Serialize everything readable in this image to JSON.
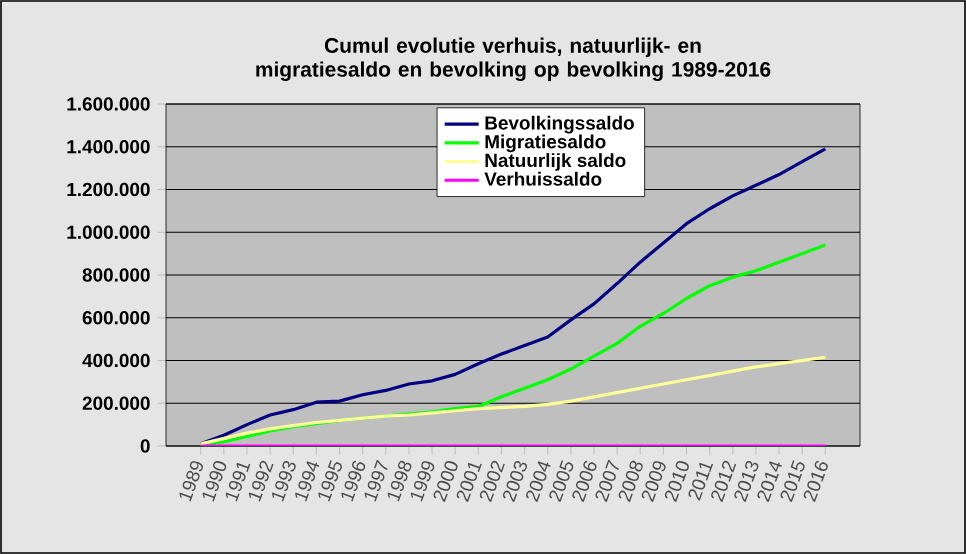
{
  "chart_data": {
    "type": "line",
    "title": "Cumul evolutie verhuis, natuurlijk- en migratiesaldo en bevolking op bevolking 1989-2016",
    "categories": [
      "1989",
      "1990",
      "1991",
      "1992",
      "1993",
      "1994",
      "1995",
      "1996",
      "1997",
      "1998",
      "1999",
      "2000",
      "2001",
      "2002",
      "2003",
      "2004",
      "2005",
      "2006",
      "2007",
      "2008",
      "2009",
      "2010",
      "2011",
      "2012",
      "2013",
      "2014",
      "2015",
      "2016"
    ],
    "series": [
      {
        "name": "Bevolkingssaldo",
        "color": "#000080",
        "values": [
          10000,
          50000,
          100000,
          145000,
          170000,
          205000,
          210000,
          240000,
          260000,
          290000,
          305000,
          335000,
          385000,
          430000,
          470000,
          510000,
          590000,
          665000,
          760000,
          860000,
          950000,
          1040000,
          1110000,
          1170000,
          1220000,
          1270000,
          1330000,
          1390000
        ]
      },
      {
        "name": "Migratiesaldo",
        "color": "#00ff00",
        "values": [
          0,
          20000,
          45000,
          70000,
          90000,
          105000,
          120000,
          130000,
          140000,
          150000,
          160000,
          175000,
          185000,
          230000,
          270000,
          310000,
          360000,
          420000,
          480000,
          560000,
          620000,
          690000,
          750000,
          790000,
          820000,
          860000,
          900000,
          940000
        ]
      },
      {
        "name": "Natuurlijk saldo",
        "color": "#ffff99",
        "values": [
          10000,
          35000,
          60000,
          80000,
          95000,
          110000,
          120000,
          130000,
          140000,
          145000,
          155000,
          165000,
          175000,
          180000,
          185000,
          195000,
          210000,
          230000,
          250000,
          270000,
          290000,
          310000,
          330000,
          350000,
          370000,
          385000,
          400000,
          415000
        ]
      },
      {
        "name": "Verhuissaldo",
        "color": "#ff00ff",
        "values": [
          0,
          0,
          0,
          0,
          0,
          0,
          0,
          0,
          0,
          0,
          0,
          0,
          0,
          0,
          0,
          0,
          0,
          0,
          0,
          0,
          0,
          0,
          0,
          0,
          0,
          0,
          0,
          0
        ]
      }
    ],
    "ylim": [
      0,
      1600000
    ],
    "yticks": [
      0,
      {
        "value": 200000,
        "label": "200.000"
      },
      {
        "value": 400000,
        "label": "400.000"
      },
      {
        "value": 600000,
        "label": "600.000"
      },
      {
        "value": 800000,
        "label": "800.000"
      },
      {
        "value": 1000000,
        "label": "1.000.000"
      },
      {
        "value": 1200000,
        "label": "1.200.000"
      },
      {
        "value": 1400000,
        "label": "1.400.000"
      },
      {
        "value": 1600000,
        "label": "1.600.000"
      }
    ],
    "grid": "y",
    "legend": "top left",
    "marker": "none",
    "line_style": "solid"
  }
}
